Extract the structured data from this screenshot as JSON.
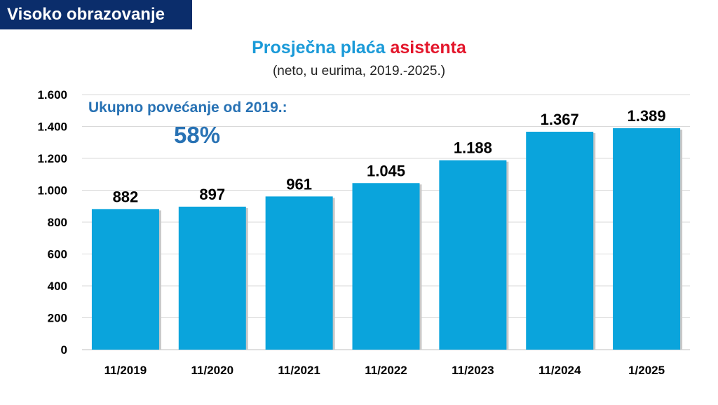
{
  "section_tag": "Visoko obrazovanje",
  "title": {
    "part1": "Prosječna plaća",
    "part2": "asistenta"
  },
  "subtitle": "(neto, u eurima, 2019.-2025.)",
  "annotation": {
    "label": "Ukupno povećanje od 2019.:",
    "value": "58%"
  },
  "colors": {
    "bar": "#0aa4dc",
    "accent": "#2872b4",
    "title_blue": "#1a9ad8",
    "title_red": "#e3162b",
    "tag_bg": "#0b2d6b",
    "grid": "#d9d9d9"
  },
  "chart_data": {
    "type": "bar",
    "categories": [
      "11/2019",
      "11/2020",
      "11/2021",
      "11/2022",
      "11/2023",
      "11/2024",
      "1/2025"
    ],
    "values": [
      882,
      897,
      961,
      1045,
      1188,
      1367,
      1389
    ],
    "value_labels": [
      "882",
      "897",
      "961",
      "1.045",
      "1.188",
      "1.367",
      "1.389"
    ],
    "ylim": [
      0,
      1600
    ],
    "yticks": [
      0,
      200,
      400,
      600,
      800,
      1000,
      1200,
      1400,
      1600
    ],
    "ytick_labels": [
      "0",
      "200",
      "400",
      "600",
      "800",
      "1.000",
      "1.200",
      "1.400",
      "1.600"
    ],
    "grid": true,
    "legend": "none"
  }
}
